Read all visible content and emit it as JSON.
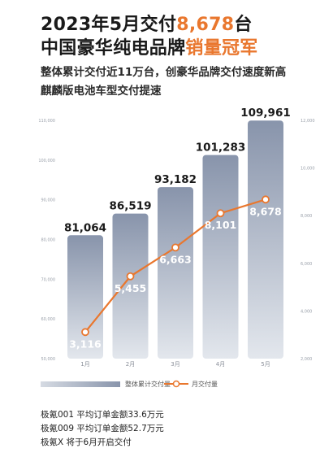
{
  "headline": {
    "line1_prefix": "2023年5月交付",
    "line1_highlight": "8,678",
    "line1_suffix": "台",
    "line2_prefix": "中国豪华纯电品牌",
    "line2_highlight": "销量冠军"
  },
  "subheadline": {
    "line1": "整体累计交付近11万台，创豪华品牌交付速度新高",
    "line2": "麒麟版电池车型交付提速"
  },
  "chart_data": {
    "type": "bar",
    "categories": [
      "1月",
      "2月",
      "3月",
      "4月",
      "5月"
    ],
    "series": [
      {
        "name": "整体累计交付量",
        "type": "bar",
        "axis": "left",
        "values": [
          81064,
          86519,
          93182,
          101283,
          109961
        ]
      },
      {
        "name": "月交付量",
        "type": "line",
        "axis": "right",
        "values": [
          3116,
          5455,
          6663,
          8101,
          8678
        ]
      }
    ],
    "left_axis": {
      "ylim": [
        50000,
        110000
      ],
      "ticks": [
        50000,
        60000,
        70000,
        80000,
        90000,
        100000,
        110000
      ]
    },
    "right_axis": {
      "ylim": [
        2000,
        12000
      ],
      "ticks": [
        2000,
        4000,
        6000,
        8000,
        10000,
        12000
      ]
    },
    "legend_position": "bottom-left",
    "grid": false,
    "colors": {
      "bar_top": "#8894ab",
      "bar_bottom": "#e3e7ed",
      "line": "#e9772e"
    }
  },
  "notes": [
    "极氪001 平均订单金额33.6万元",
    "极氪009 平均订单金额52.7万元",
    "极氪X 将于6月开启交付"
  ]
}
